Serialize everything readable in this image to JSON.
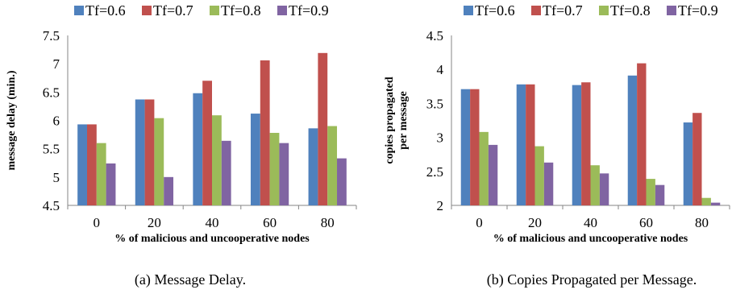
{
  "chart_data": [
    {
      "type": "bar",
      "categories": [
        "0",
        "20",
        "40",
        "60",
        "80"
      ],
      "series": [
        {
          "name": "Tf=0.6",
          "color": "#4f81bd",
          "values": [
            5.93,
            6.37,
            6.48,
            6.12,
            5.86
          ]
        },
        {
          "name": "Tf=0.7",
          "color": "#c0504d",
          "values": [
            5.93,
            6.37,
            6.7,
            7.06,
            7.19
          ]
        },
        {
          "name": "Tf=0.8",
          "color": "#9bbb59",
          "values": [
            5.6,
            6.04,
            6.09,
            5.78,
            5.9
          ]
        },
        {
          "name": "Tf=0.9",
          "color": "#8064a2",
          "values": [
            5.24,
            5.0,
            5.64,
            5.6,
            5.33
          ]
        }
      ],
      "ylim": [
        4.5,
        7.5
      ],
      "yticks": [
        "4.5",
        "5",
        "5.5",
        "6",
        "6.5",
        "7",
        "7.5"
      ],
      "xlabel": "% of malicious and uncooperative nodes",
      "ylabel": [
        "message delay (min.)"
      ],
      "caption": "(a) Message Delay.",
      "legend": "top",
      "grid": false
    },
    {
      "type": "bar",
      "categories": [
        "0",
        "20",
        "40",
        "60",
        "80"
      ],
      "series": [
        {
          "name": "Tf=0.6",
          "color": "#4f81bd",
          "values": [
            3.71,
            3.78,
            3.77,
            3.91,
            3.22
          ]
        },
        {
          "name": "Tf=0.7",
          "color": "#c0504d",
          "values": [
            3.71,
            3.78,
            3.81,
            4.09,
            3.36
          ]
        },
        {
          "name": "Tf=0.8",
          "color": "#9bbb59",
          "values": [
            3.08,
            2.87,
            2.59,
            2.39,
            2.11
          ]
        },
        {
          "name": "Tf=0.9",
          "color": "#8064a2",
          "values": [
            2.89,
            2.63,
            2.47,
            2.3,
            2.04
          ]
        }
      ],
      "ylim": [
        2,
        4.5
      ],
      "yticks": [
        "2",
        "2.5",
        "3",
        "3.5",
        "4",
        "4.5"
      ],
      "xlabel": "% of malicious and uncooperative nodes",
      "ylabel": [
        "copies propagated",
        "per message"
      ],
      "caption": "(b) Copies Propagated per Message.",
      "legend": "top",
      "grid": false
    }
  ]
}
